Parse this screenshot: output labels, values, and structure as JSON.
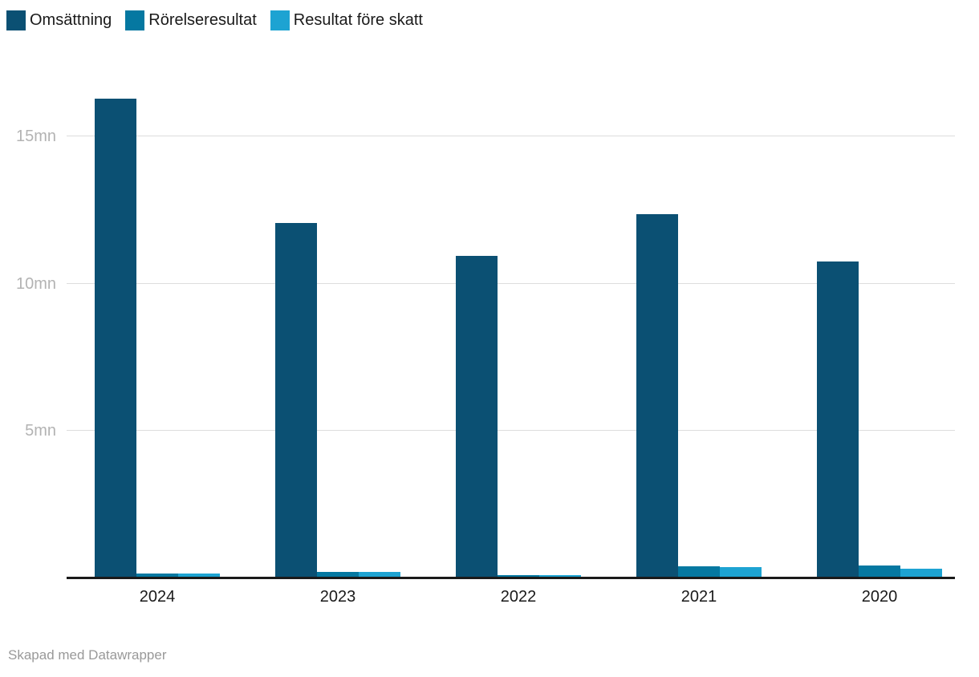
{
  "chart_data": {
    "type": "bar",
    "title": "",
    "xlabel": "",
    "ylabel": "",
    "legend_position": "top",
    "grid": "horizontal",
    "categories": [
      "2024",
      "2023",
      "2022",
      "2021",
      "2020"
    ],
    "series": [
      {
        "name": "Omsättning",
        "color": "#0b5073",
        "values": [
          16.3,
          12.05,
          10.95,
          12.35,
          10.75
        ]
      },
      {
        "name": "Rörelseresultat",
        "color": "#0578a1",
        "values": [
          0.14,
          0.18,
          0.08,
          0.38,
          0.41
        ]
      },
      {
        "name": "Resultat före skatt",
        "color": "#1da3d2",
        "values": [
          0.14,
          0.18,
          0.08,
          0.35,
          0.3
        ]
      }
    ],
    "yticks": [
      {
        "value": 5,
        "label": "5mn"
      },
      {
        "value": 10,
        "label": "10mn"
      },
      {
        "value": 15,
        "label": "15mn"
      }
    ],
    "ylim": [
      0,
      17
    ]
  },
  "footer": {
    "credit": "Skapad med Datawrapper"
  },
  "colors": {
    "background": "#ffffff",
    "axis_line": "#1a1a1a",
    "gridline": "#dddddd",
    "tick_label": "#b3b3b3",
    "category_label": "#1a1a1a",
    "footer_text": "#999999"
  }
}
